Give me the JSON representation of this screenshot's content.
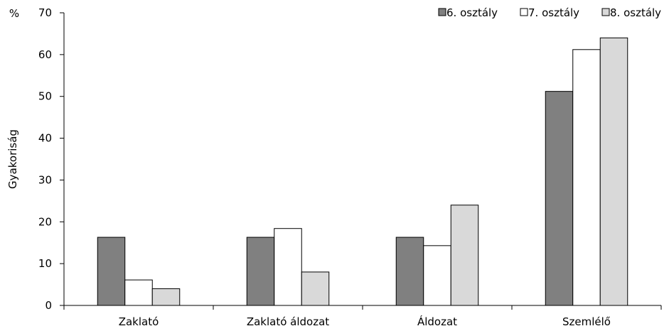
{
  "chart_data": {
    "type": "bar",
    "title": "",
    "xlabel": "",
    "ylabel": "Gyakoriság",
    "y_unit": "%",
    "ylim": [
      0,
      70
    ],
    "yticks": [
      0,
      10,
      20,
      30,
      40,
      50,
      60,
      70
    ],
    "grid": false,
    "legend_position": "top-right",
    "categories": [
      "Zaklató",
      "Zaklató áldozat",
      "Áldozat",
      "Szemlélő"
    ],
    "series": [
      {
        "name": "6. osztály",
        "color": "#808080",
        "values": [
          16.3,
          16.3,
          16.3,
          51.2
        ]
      },
      {
        "name": "7. osztály",
        "color": "#ffffff",
        "values": [
          6.1,
          18.4,
          14.3,
          61.2
        ]
      },
      {
        "name": "8. osztály",
        "color": "#d9d9d9",
        "values": [
          4.0,
          8.0,
          24.0,
          64.0
        ]
      }
    ]
  }
}
